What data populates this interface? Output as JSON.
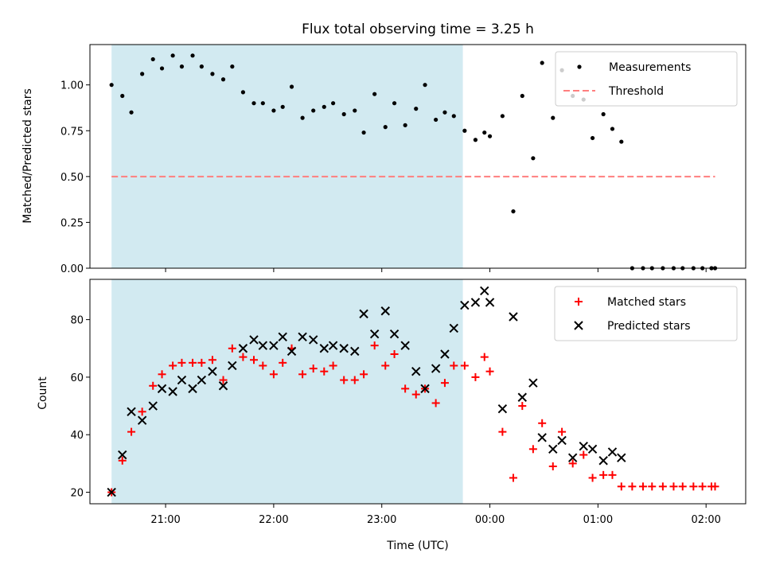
{
  "title": "Flux total observing time = 3.25 h",
  "colors": {
    "shade": "#add8e6",
    "measurement": "#000000",
    "threshold": "#ff7f7f",
    "matched": "#ff0000",
    "predicted": "#000000"
  },
  "chart_data": [
    {
      "type": "scatter",
      "ylabel": "Matched/Predicted stars",
      "xlabel": "",
      "xlim": [
        "20:18",
        "02:22"
      ],
      "ylim": [
        0,
        1.22
      ],
      "y_ticks": [
        "0.00",
        "0.25",
        "0.50",
        "0.75",
        "1.00"
      ],
      "y_tick_values": [
        0,
        0.25,
        0.5,
        0.75,
        1.0
      ],
      "shaded_span": [
        "20:30",
        "23:45"
      ],
      "threshold": {
        "name": "Threshold",
        "y": 0.5,
        "x_range": [
          "20:30",
          "02:05"
        ],
        "style": "dashed"
      },
      "legend": {
        "position": "top-right",
        "entries": [
          "Measurements",
          "Threshold"
        ]
      },
      "series": [
        {
          "name": "Measurements",
          "x": [
            "20:30",
            "20:36",
            "20:41",
            "20:47",
            "20:53",
            "20:58",
            "21:04",
            "21:09",
            "21:15",
            "21:20",
            "21:26",
            "21:32",
            "21:37",
            "21:43",
            "21:49",
            "21:54",
            "22:00",
            "22:05",
            "22:10",
            "22:16",
            "22:22",
            "22:28",
            "22:33",
            "22:39",
            "22:45",
            "22:50",
            "22:56",
            "23:02",
            "23:07",
            "23:13",
            "23:19",
            "23:24",
            "23:30",
            "23:35",
            "23:40",
            "23:46",
            "23:52",
            "23:57",
            "00:00",
            "00:07",
            "00:13",
            "00:18",
            "00:24",
            "00:29",
            "00:35",
            "00:40",
            "00:46",
            "00:52",
            "00:57",
            "01:03",
            "01:08",
            "01:13",
            "01:19",
            "01:25",
            "01:30",
            "01:36",
            "01:42",
            "01:47",
            "01:53",
            "01:58",
            "02:03",
            "02:05"
          ],
          "y": [
            1.0,
            0.94,
            0.85,
            1.06,
            1.14,
            1.09,
            1.16,
            1.1,
            1.16,
            1.1,
            1.06,
            1.03,
            1.1,
            0.96,
            0.9,
            0.9,
            0.86,
            0.88,
            0.99,
            0.82,
            0.86,
            0.88,
            0.9,
            0.84,
            0.86,
            0.74,
            0.95,
            0.77,
            0.9,
            0.78,
            0.87,
            1.0,
            0.81,
            0.85,
            0.83,
            0.75,
            0.7,
            0.74,
            0.72,
            0.83,
            0.31,
            0.94,
            0.6,
            1.12,
            0.82,
            1.08,
            0.94,
            0.92,
            0.71,
            0.84,
            0.76,
            0.69,
            0.0,
            0.0,
            0.0,
            0.0,
            0.0,
            0.0,
            0.0,
            0.0,
            0.0,
            0.0
          ]
        }
      ]
    },
    {
      "type": "scatter",
      "ylabel": "Count",
      "xlabel": "Time (UTC)",
      "xlim": [
        "20:18",
        "02:22"
      ],
      "ylim": [
        16,
        94
      ],
      "y_ticks": [
        "20",
        "40",
        "60",
        "80"
      ],
      "y_tick_values": [
        20,
        40,
        60,
        80
      ],
      "x_ticks": [
        "21:00",
        "22:00",
        "23:00",
        "00:00",
        "01:00",
        "02:00"
      ],
      "shaded_span": [
        "20:30",
        "23:45"
      ],
      "legend": {
        "position": "top-right",
        "entries": [
          "Matched stars",
          "Predicted stars"
        ]
      },
      "series": [
        {
          "name": "Matched stars",
          "x": [
            "20:30",
            "20:36",
            "20:41",
            "20:47",
            "20:53",
            "20:58",
            "21:04",
            "21:09",
            "21:15",
            "21:20",
            "21:26",
            "21:32",
            "21:37",
            "21:43",
            "21:49",
            "21:54",
            "22:00",
            "22:05",
            "22:10",
            "22:16",
            "22:22",
            "22:28",
            "22:33",
            "22:39",
            "22:45",
            "22:50",
            "22:56",
            "23:02",
            "23:07",
            "23:13",
            "23:19",
            "23:24",
            "23:30",
            "23:35",
            "23:40",
            "23:46",
            "23:52",
            "23:57",
            "00:00",
            "00:07",
            "00:13",
            "00:18",
            "00:24",
            "00:29",
            "00:35",
            "00:40",
            "00:46",
            "00:52",
            "00:57",
            "01:03",
            "01:08",
            "01:13",
            "01:19",
            "01:25",
            "01:30",
            "01:36",
            "01:42",
            "01:47",
            "01:53",
            "01:58",
            "02:03",
            "02:05"
          ],
          "y": [
            20,
            31,
            41,
            48,
            57,
            61,
            64,
            65,
            65,
            65,
            66,
            59,
            70,
            67,
            66,
            64,
            61,
            65,
            70,
            61,
            63,
            62,
            64,
            59,
            59,
            61,
            71,
            64,
            68,
            56,
            54,
            56,
            51,
            58,
            64,
            64,
            60,
            67,
            62,
            41,
            25,
            50,
            35,
            44,
            29,
            41,
            30,
            33,
            25,
            26,
            26,
            22,
            22,
            22,
            22,
            22,
            22,
            22,
            22,
            22,
            22,
            22
          ]
        },
        {
          "name": "Predicted stars",
          "x": [
            "20:30",
            "20:36",
            "20:41",
            "20:47",
            "20:53",
            "20:58",
            "21:04",
            "21:09",
            "21:15",
            "21:20",
            "21:26",
            "21:32",
            "21:37",
            "21:43",
            "21:49",
            "21:54",
            "22:00",
            "22:05",
            "22:10",
            "22:16",
            "22:22",
            "22:28",
            "22:33",
            "22:39",
            "22:45",
            "22:50",
            "22:56",
            "23:02",
            "23:07",
            "23:13",
            "23:19",
            "23:24",
            "23:30",
            "23:35",
            "23:40",
            "23:46",
            "23:52",
            "23:57",
            "00:00",
            "00:07",
            "00:13",
            "00:18",
            "00:24",
            "00:29",
            "00:35",
            "00:40",
            "00:46",
            "00:52",
            "00:57",
            "01:03",
            "01:08",
            "01:13"
          ],
          "y": [
            20,
            33,
            48,
            45,
            50,
            56,
            55,
            59,
            56,
            59,
            62,
            57,
            64,
            70,
            73,
            71,
            71,
            74,
            69,
            74,
            73,
            70,
            71,
            70,
            69,
            82,
            75,
            83,
            75,
            71,
            62,
            56,
            63,
            68,
            77,
            85,
            86,
            90,
            86,
            49,
            81,
            53,
            58,
            39,
            35,
            38,
            32,
            36,
            35,
            31,
            34,
            32
          ]
        }
      ]
    }
  ]
}
